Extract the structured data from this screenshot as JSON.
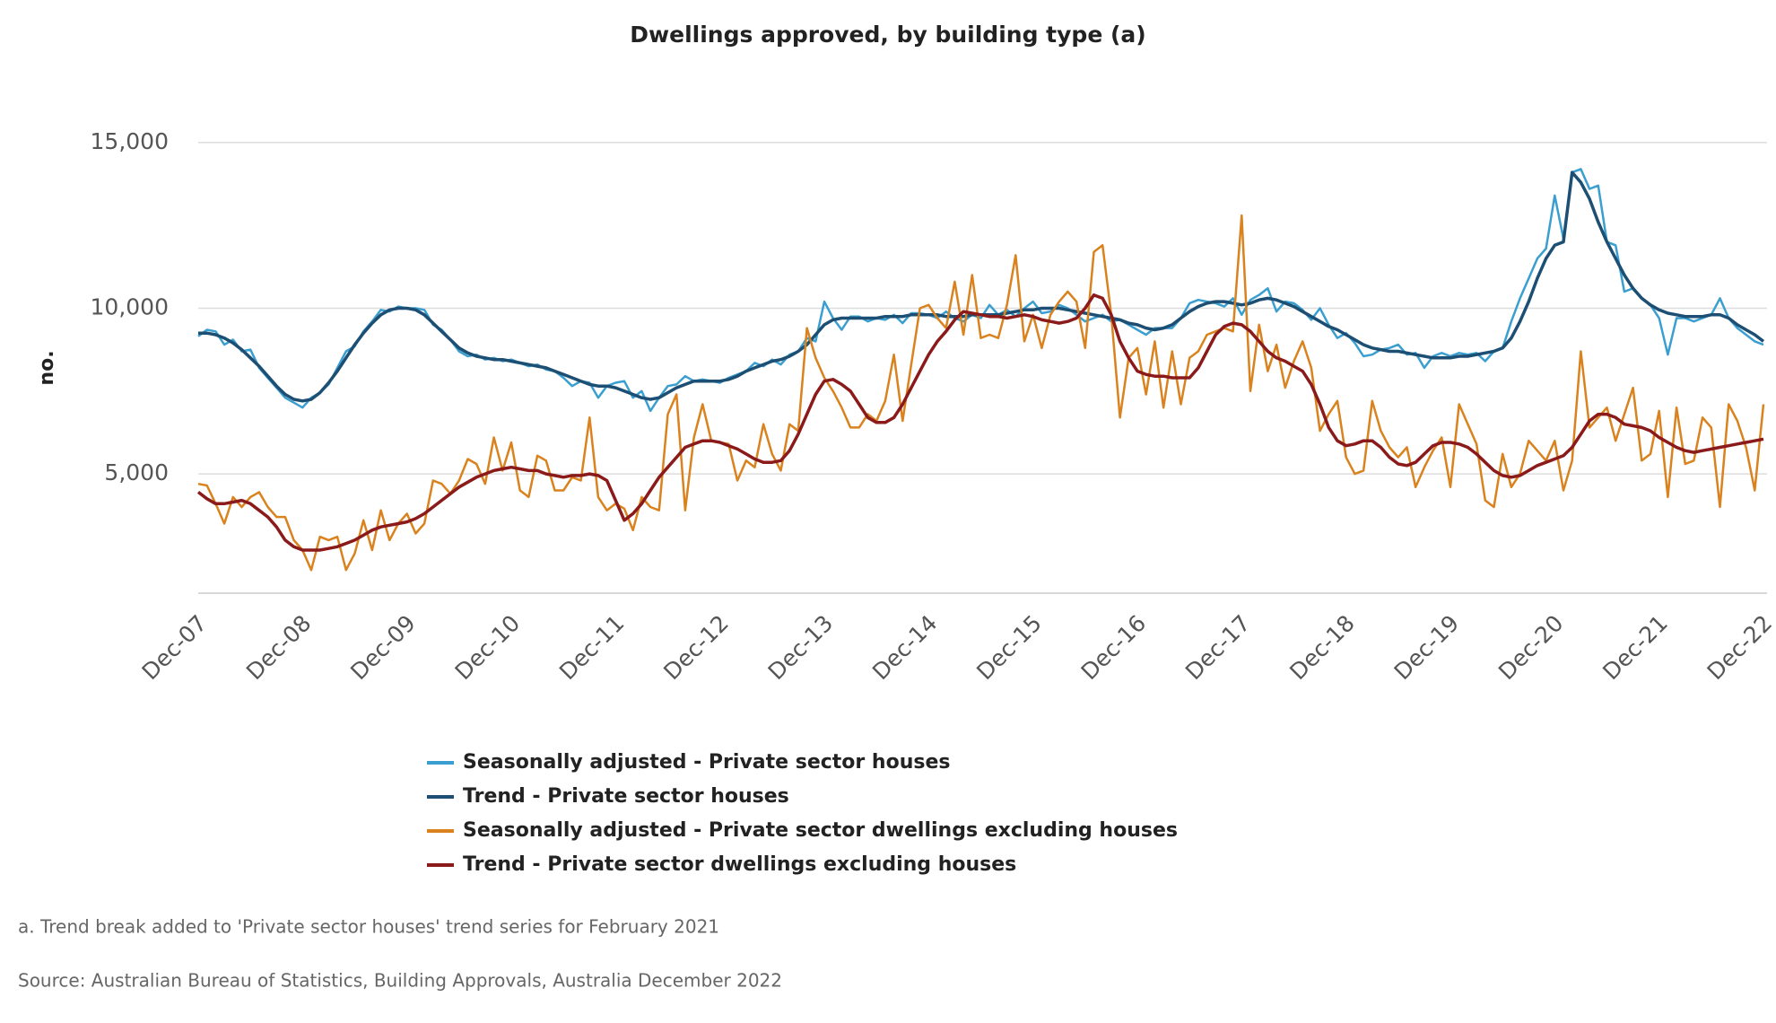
{
  "chart_data": {
    "type": "line",
    "title": "Dwellings approved, by building type (a)",
    "y_label": "no.",
    "footnote": "a. Trend break added to 'Private sector houses' trend series for February 2021",
    "source": "Source: Australian Bureau of Statistics, Building Approvals, Australia December 2022",
    "categories": [
      "Dec-07",
      null,
      null,
      null,
      null,
      null,
      null,
      null,
      null,
      null,
      null,
      null,
      "Dec-08",
      null,
      null,
      null,
      null,
      null,
      null,
      null,
      null,
      null,
      null,
      null,
      "Dec-09",
      null,
      null,
      null,
      null,
      null,
      null,
      null,
      null,
      null,
      null,
      null,
      "Dec-10",
      null,
      null,
      null,
      null,
      null,
      null,
      null,
      null,
      null,
      null,
      null,
      "Dec-11",
      null,
      null,
      null,
      null,
      null,
      null,
      null,
      null,
      null,
      null,
      null,
      "Dec-12",
      null,
      null,
      null,
      null,
      null,
      null,
      null,
      null,
      null,
      null,
      null,
      "Dec-13",
      null,
      null,
      null,
      null,
      null,
      null,
      null,
      null,
      null,
      null,
      null,
      "Dec-14",
      null,
      null,
      null,
      null,
      null,
      null,
      null,
      null,
      null,
      null,
      null,
      "Dec-15",
      null,
      null,
      null,
      null,
      null,
      null,
      null,
      null,
      null,
      null,
      null,
      "Dec-16",
      null,
      null,
      null,
      null,
      null,
      null,
      null,
      null,
      null,
      null,
      null,
      "Dec-17",
      null,
      null,
      null,
      null,
      null,
      null,
      null,
      null,
      null,
      null,
      null,
      "Dec-18",
      null,
      null,
      null,
      null,
      null,
      null,
      null,
      null,
      null,
      null,
      null,
      "Dec-19",
      null,
      null,
      null,
      null,
      null,
      null,
      null,
      null,
      null,
      null,
      null,
      "Dec-20",
      null,
      null,
      null,
      null,
      null,
      null,
      null,
      null,
      null,
      null,
      null,
      "Dec-21",
      null,
      null,
      null,
      null,
      null,
      null,
      null,
      null,
      null,
      null,
      null,
      "Dec-22"
    ],
    "series": [
      {
        "name": "Seasonally adjusted - Private sector houses",
        "color": "#3a9fd0",
        "width": 2.5,
        "values": [
          9150,
          9350,
          9300,
          8900,
          9050,
          8700,
          8750,
          8200,
          7900,
          7600,
          7300,
          7150,
          7000,
          7300,
          7450,
          7700,
          8200,
          8700,
          8850,
          9300,
          9600,
          9950,
          9900,
          10050,
          10000,
          10000,
          9950,
          9500,
          9350,
          9050,
          8700,
          8550,
          8600,
          8450,
          8500,
          8400,
          8450,
          8350,
          8250,
          8300,
          8150,
          8100,
          7900,
          7650,
          7800,
          7750,
          7300,
          7650,
          7750,
          7800,
          7300,
          7500,
          6900,
          7300,
          7650,
          7700,
          7950,
          7800,
          7850,
          7800,
          7750,
          7900,
          8000,
          8100,
          8350,
          8250,
          8450,
          8300,
          8600,
          8700,
          9100,
          9000,
          10200,
          9700,
          9350,
          9750,
          9750,
          9600,
          9700,
          9650,
          9800,
          9550,
          9850,
          9850,
          9800,
          9700,
          9900,
          9700,
          9600,
          9800,
          9700,
          10100,
          9800,
          9950,
          9750,
          10000,
          10200,
          9850,
          9900,
          10100,
          10000,
          9800,
          9600,
          9700,
          9800,
          9600,
          9650,
          9500,
          9350,
          9200,
          9400,
          9400,
          9400,
          9700,
          10150,
          10250,
          10200,
          10150,
          10050,
          10300,
          9800,
          10250,
          10400,
          10600,
          9900,
          10200,
          10150,
          9950,
          9650,
          10000,
          9500,
          9100,
          9250,
          8950,
          8550,
          8600,
          8750,
          8800,
          8900,
          8600,
          8650,
          8200,
          8550,
          8650,
          8550,
          8650,
          8600,
          8650,
          8400,
          8700,
          8800,
          9600,
          10300,
          10900,
          11500,
          11800,
          13400,
          12100,
          14100,
          14200,
          13600,
          13700,
          12000,
          11900,
          10500,
          10600,
          10300,
          10100,
          9700,
          8600,
          9700,
          9700,
          9600,
          9700,
          9800,
          10300,
          9700,
          9400,
          9200,
          9000,
          8900
        ]
      },
      {
        "name": "Trend - Private sector houses",
        "color": "#1c4f73",
        "width": 3.5,
        "values": [
          9250,
          9250,
          9200,
          9100,
          8950,
          8750,
          8500,
          8250,
          7950,
          7650,
          7400,
          7250,
          7200,
          7250,
          7450,
          7750,
          8100,
          8500,
          8900,
          9250,
          9550,
          9800,
          9950,
          10000,
          10000,
          9950,
          9800,
          9550,
          9300,
          9050,
          8800,
          8650,
          8550,
          8500,
          8450,
          8450,
          8400,
          8350,
          8300,
          8250,
          8200,
          8100,
          8000,
          7900,
          7800,
          7700,
          7650,
          7650,
          7600,
          7500,
          7400,
          7300,
          7250,
          7300,
          7450,
          7600,
          7700,
          7800,
          7800,
          7800,
          7800,
          7850,
          7950,
          8100,
          8200,
          8300,
          8400,
          8450,
          8550,
          8700,
          8900,
          9200,
          9500,
          9650,
          9700,
          9700,
          9700,
          9700,
          9700,
          9750,
          9750,
          9750,
          9800,
          9800,
          9800,
          9800,
          9750,
          9750,
          9750,
          9800,
          9800,
          9800,
          9800,
          9850,
          9900,
          9950,
          9950,
          10000,
          10000,
          10000,
          9950,
          9900,
          9850,
          9800,
          9750,
          9700,
          9650,
          9550,
          9500,
          9400,
          9350,
          9400,
          9500,
          9700,
          9900,
          10050,
          10150,
          10200,
          10200,
          10150,
          10100,
          10150,
          10250,
          10300,
          10250,
          10150,
          10050,
          9900,
          9750,
          9600,
          9450,
          9350,
          9200,
          9050,
          8900,
          8800,
          8750,
          8700,
          8700,
          8650,
          8600,
          8550,
          8500,
          8500,
          8500,
          8550,
          8550,
          8600,
          8650,
          8700,
          8800,
          9100,
          9600,
          10200,
          10900,
          11500,
          11900,
          12000,
          14100,
          13800,
          13300,
          12600,
          12000,
          11500,
          11000,
          10600,
          10300,
          10100,
          9950,
          9850,
          9800,
          9750,
          9750,
          9750,
          9800,
          9800,
          9700,
          9500,
          9350,
          9200,
          9000
        ]
      },
      {
        "name": "Seasonally adjusted - Private sector dwellings excluding houses",
        "color": "#d9821e",
        "width": 2.5,
        "values": [
          4700,
          4650,
          4100,
          3500,
          4300,
          4000,
          4300,
          4450,
          4000,
          3700,
          3700,
          3000,
          2700,
          2100,
          3100,
          3000,
          3100,
          2100,
          2600,
          3600,
          2700,
          3900,
          3000,
          3500,
          3800,
          3200,
          3500,
          4800,
          4700,
          4400,
          4800,
          5450,
          5300,
          4700,
          6100,
          5100,
          5950,
          4500,
          4300,
          5550,
          5400,
          4500,
          4500,
          4900,
          4800,
          6700,
          4300,
          3900,
          4100,
          3950,
          3300,
          4300,
          4000,
          3900,
          6800,
          7400,
          3900,
          6100,
          7100,
          6000,
          5950,
          5900,
          4800,
          5400,
          5200,
          6500,
          5600,
          5100,
          6500,
          6300,
          9400,
          8500,
          7900,
          7500,
          7000,
          6400,
          6400,
          6800,
          6600,
          7200,
          8600,
          6600,
          8300,
          10000,
          10100,
          9700,
          9400,
          10800,
          9200,
          11000,
          9100,
          9200,
          9100,
          10100,
          11600,
          9000,
          9800,
          8800,
          9800,
          10200,
          10500,
          10200,
          8800,
          11700,
          11900,
          9800,
          6700,
          8500,
          8800,
          7400,
          9000,
          7000,
          8700,
          7100,
          8500,
          8700,
          9200,
          9300,
          9400,
          9300,
          12800,
          7500,
          9500,
          8100,
          8900,
          7600,
          8400,
          9000,
          8200,
          6300,
          6800,
          7200,
          5500,
          5000,
          5100,
          7200,
          6300,
          5800,
          5500,
          5800,
          4600,
          5200,
          5700,
          6100,
          4600,
          7100,
          6500,
          5900,
          4200,
          4000,
          5600,
          4600,
          5000,
          6000,
          5700,
          5400,
          6000,
          4500,
          5400,
          8700,
          6400,
          6700,
          7000,
          6000,
          6800,
          7600,
          5400,
          5600,
          6900,
          4300,
          7000,
          5300,
          5400,
          6700,
          6400,
          4000,
          7100,
          6600,
          5800,
          4500,
          7100
        ]
      },
      {
        "name": "Trend - Private sector dwellings excluding houses",
        "color": "#8b1a1a",
        "width": 3.5,
        "values": [
          4450,
          4250,
          4100,
          4100,
          4150,
          4200,
          4100,
          3900,
          3700,
          3400,
          3000,
          2800,
          2700,
          2700,
          2700,
          2750,
          2800,
          2900,
          3000,
          3150,
          3300,
          3400,
          3450,
          3500,
          3550,
          3650,
          3800,
          4000,
          4200,
          4400,
          4600,
          4750,
          4900,
          5000,
          5100,
          5150,
          5200,
          5150,
          5100,
          5100,
          5000,
          4950,
          4900,
          4950,
          4950,
          5000,
          4950,
          4800,
          4200,
          3600,
          3800,
          4100,
          4500,
          4900,
          5200,
          5500,
          5800,
          5900,
          6000,
          6000,
          5950,
          5850,
          5750,
          5600,
          5450,
          5350,
          5350,
          5400,
          5700,
          6200,
          6800,
          7400,
          7800,
          7850,
          7700,
          7500,
          7100,
          6700,
          6550,
          6550,
          6700,
          7100,
          7600,
          8100,
          8600,
          9000,
          9300,
          9650,
          9900,
          9850,
          9800,
          9750,
          9750,
          9700,
          9750,
          9800,
          9750,
          9650,
          9600,
          9550,
          9600,
          9700,
          10000,
          10400,
          10300,
          9800,
          9000,
          8500,
          8100,
          8000,
          7950,
          7950,
          7900,
          7900,
          7900,
          8200,
          8700,
          9200,
          9450,
          9550,
          9500,
          9300,
          9000,
          8700,
          8500,
          8400,
          8250,
          8100,
          7700,
          7100,
          6400,
          6000,
          5850,
          5900,
          6000,
          6000,
          5800,
          5500,
          5300,
          5250,
          5350,
          5600,
          5850,
          5950,
          5950,
          5900,
          5800,
          5600,
          5350,
          5100,
          4950,
          4900,
          4950,
          5100,
          5250,
          5350,
          5450,
          5550,
          5800,
          6200,
          6600,
          6800,
          6800,
          6700,
          6500,
          6450,
          6400,
          6300,
          6100,
          5950,
          5800,
          5700,
          5650,
          5700,
          5750,
          5800,
          5850,
          5900,
          5950,
          6000,
          6050
        ]
      }
    ],
    "ylim": [
      1400,
      15700
    ],
    "yticks": [
      {
        "value": 5000,
        "label": "5,000"
      },
      {
        "value": 10000,
        "label": "10,000"
      },
      {
        "value": 15000,
        "label": "15,000"
      }
    ],
    "grid": true
  }
}
